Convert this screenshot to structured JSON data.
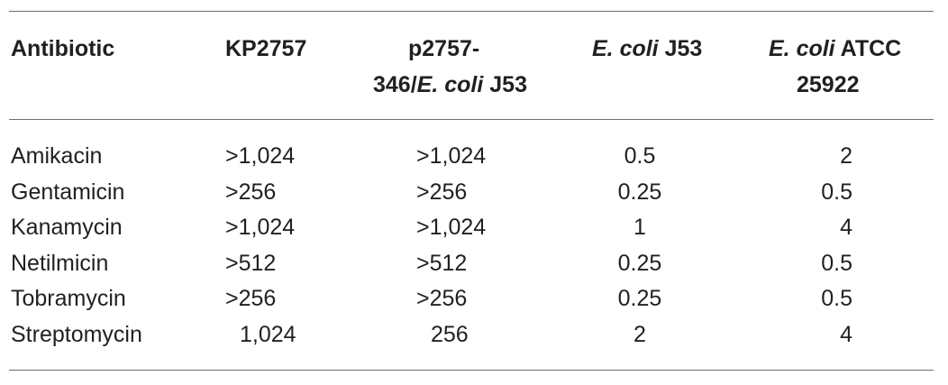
{
  "table": {
    "header": {
      "antibiotic": "Antibiotic",
      "kp2757": "KP2757",
      "plasmid_line1": "p2757-",
      "plasmid_line2_prefix": "346/",
      "plasmid_line2_italic": "E. coli",
      "plasmid_line2_suffix": " J53",
      "j53_italic": "E. coli",
      "j53_suffix": " J53",
      "atcc_italic": "E. coli",
      "atcc_suffix": " ATCC",
      "atcc_line2": "25922"
    },
    "rows": [
      {
        "antibiotic": "Amikacin",
        "kp2757": ">1,024",
        "p2757": ">1,024",
        "j53": "0.5",
        "atcc": "2"
      },
      {
        "antibiotic": "Gentamicin",
        "kp2757": ">256",
        "p2757": ">256",
        "j53": "0.25",
        "atcc": "0.5"
      },
      {
        "antibiotic": "Kanamycin",
        "kp2757": ">1,024",
        "p2757": ">1,024",
        "j53": "1",
        "atcc": "4"
      },
      {
        "antibiotic": "Netilmicin",
        "kp2757": ">512",
        "p2757": ">512",
        "j53": "0.25",
        "atcc": "0.5"
      },
      {
        "antibiotic": "Tobramycin",
        "kp2757": ">256",
        "p2757": ">256",
        "j53": "0.25",
        "atcc": "0.5"
      },
      {
        "antibiotic": "Streptomycin",
        "kp2757": "1,024",
        "p2757": "256",
        "j53": "2",
        "atcc": "4"
      }
    ]
  }
}
